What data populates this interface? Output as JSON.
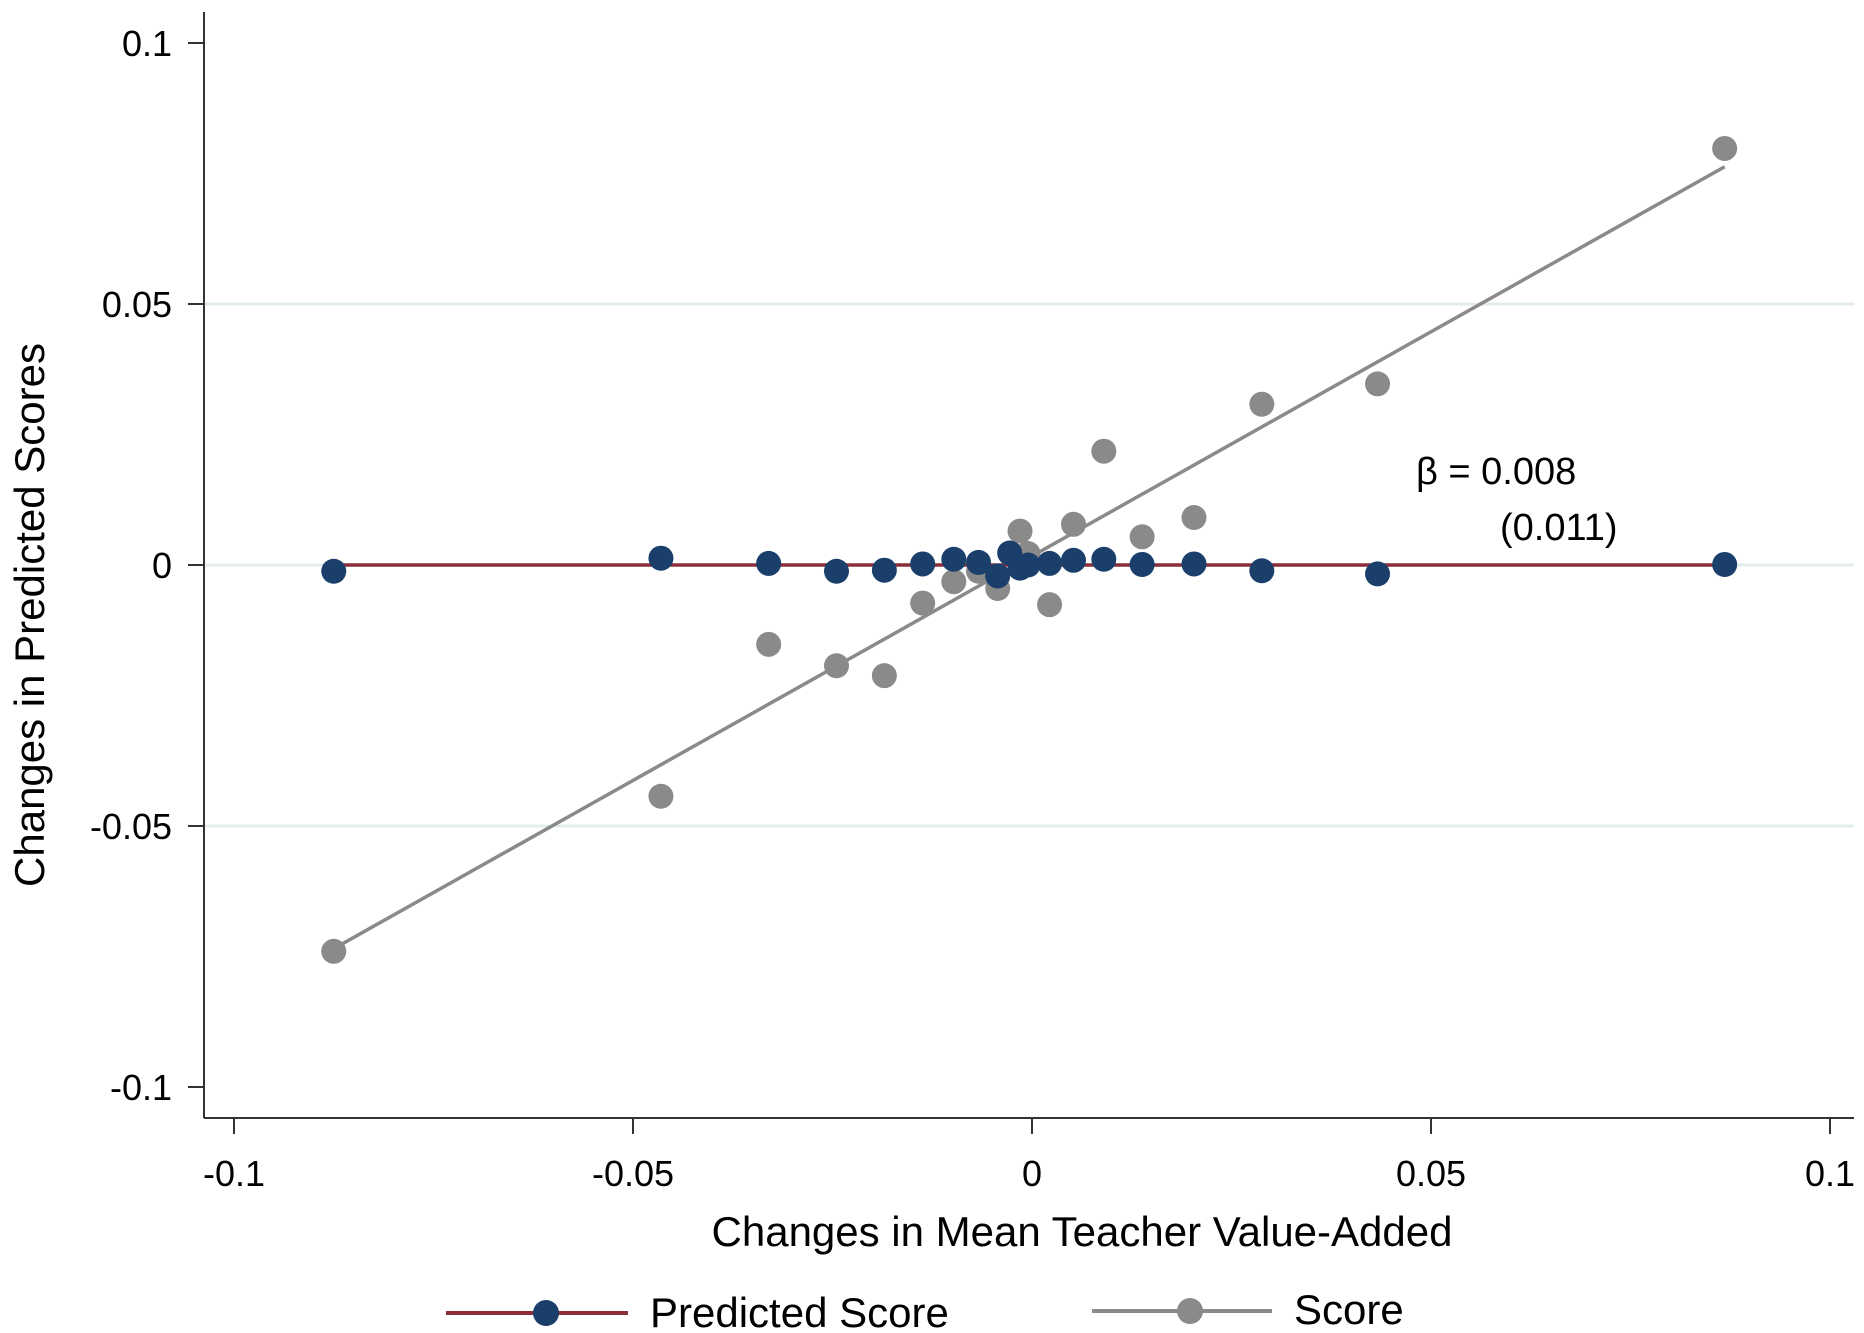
{
  "chart_data": {
    "type": "scatter",
    "xlabel": "Changes in Mean Teacher Value-Added",
    "ylabel": "Changes in Predicted Scores",
    "xlim": [
      -0.1,
      0.1
    ],
    "ylim": [
      -0.1,
      0.1
    ],
    "x_ticks": [
      -0.1,
      -0.05,
      0,
      0.05,
      0.1
    ],
    "y_ticks": [
      -0.1,
      -0.05,
      0,
      0.05,
      0.1
    ],
    "x_tick_labels": [
      "-0.1",
      "-0.05",
      "0",
      "0.05",
      "0.1"
    ],
    "y_tick_labels": [
      "-0.1",
      "-0.05",
      "0",
      "0.05",
      "0.1"
    ],
    "grid": "horizontal",
    "legend_position": "bottom",
    "series": [
      {
        "name": "Predicted Score",
        "color": "#1a3f6b",
        "line_color": "#8b2e3a",
        "points": [
          [
            -0.0875,
            -0.0012
          ],
          [
            -0.0465,
            0.0013
          ],
          [
            -0.033,
            0.0003
          ],
          [
            -0.0245,
            -0.0012
          ],
          [
            -0.0185,
            -0.001
          ],
          [
            -0.0137,
            0.0002
          ],
          [
            -0.0098,
            0.0011
          ],
          [
            -0.0067,
            0.0005
          ],
          [
            -0.0043,
            -0.0021
          ],
          [
            -0.0028,
            0.0023
          ],
          [
            -0.0015,
            -0.0006
          ],
          [
            -0.0005,
            0.0
          ],
          [
            0.0022,
            0.0003
          ],
          [
            0.0052,
            0.0009
          ],
          [
            0.009,
            0.0011
          ],
          [
            0.0138,
            0.0001
          ],
          [
            0.0203,
            0.0002
          ],
          [
            0.0288,
            -0.0011
          ],
          [
            0.0433,
            -0.0017
          ],
          [
            0.0868,
            0.0001
          ]
        ],
        "fit_line": [
          [
            -0.0875,
            0.0
          ],
          [
            0.0868,
            0.0
          ]
        ]
      },
      {
        "name": "Score",
        "color": "#8a8a8a",
        "line_color": "#8a8a8a",
        "points": [
          [
            -0.0875,
            -0.074
          ],
          [
            -0.0465,
            -0.0443
          ],
          [
            -0.033,
            -0.0152
          ],
          [
            -0.0245,
            -0.0193
          ],
          [
            -0.0185,
            -0.0212
          ],
          [
            -0.0137,
            -0.0073
          ],
          [
            -0.0098,
            -0.0032
          ],
          [
            -0.0067,
            -0.0012
          ],
          [
            -0.0043,
            -0.0045
          ],
          [
            -0.0015,
            0.0065
          ],
          [
            -0.0005,
            0.0022
          ],
          [
            0.0022,
            -0.0076
          ],
          [
            0.0052,
            0.0078
          ],
          [
            0.009,
            0.0218
          ],
          [
            0.0138,
            0.0054
          ],
          [
            0.0203,
            0.0091
          ],
          [
            0.0288,
            0.0308
          ],
          [
            0.0433,
            0.0347
          ],
          [
            0.0868,
            0.0798
          ]
        ],
        "fit_line": [
          [
            -0.0875,
            -0.0735
          ],
          [
            0.0868,
            0.0763
          ]
        ]
      }
    ],
    "annotations": {
      "beta_text": "β = 0.008",
      "se_text": "(0.011)"
    }
  }
}
